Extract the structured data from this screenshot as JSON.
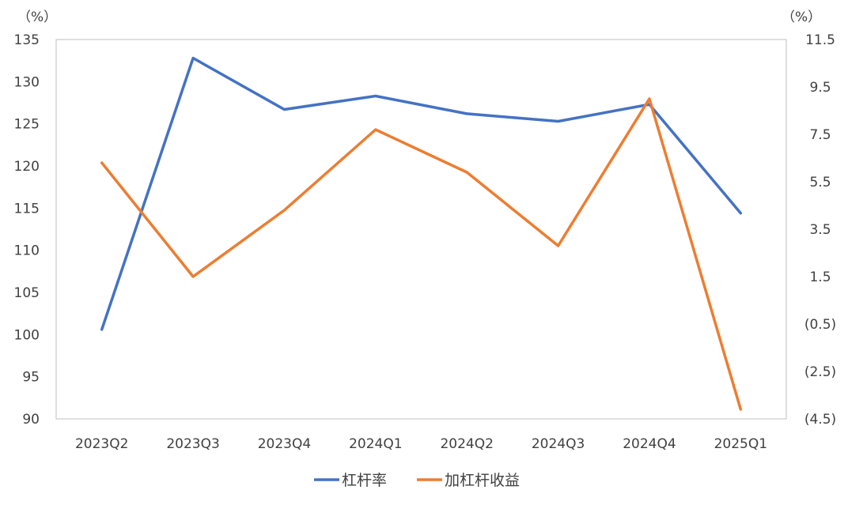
{
  "chart_data": {
    "type": "line",
    "categories": [
      "2023Q2",
      "2023Q3",
      "2023Q4",
      "2024Q1",
      "2024Q2",
      "2024Q3",
      "2024Q4",
      "2025Q1"
    ],
    "y_left": {
      "unit": "（%）",
      "ylim": [
        90,
        135
      ],
      "ticks": [
        "135",
        "130",
        "125",
        "120",
        "115",
        "110",
        "105",
        "100",
        "95",
        "90"
      ],
      "tick_values": [
        135,
        130,
        125,
        120,
        115,
        110,
        105,
        100,
        95,
        90
      ]
    },
    "y_right": {
      "unit": "（%）",
      "ylim": [
        -4.5,
        11.5
      ],
      "ticks": [
        "11.5",
        "9.5",
        "7.5",
        "5.5",
        "3.5",
        "1.5",
        "(0.5)",
        "(2.5)",
        "(4.5)"
      ],
      "tick_values": [
        11.5,
        9.5,
        7.5,
        5.5,
        3.5,
        1.5,
        -0.5,
        -2.5,
        -4.5
      ],
      "negative_color": "#ff0000"
    },
    "series": [
      {
        "name": "杠杆率",
        "axis": "left",
        "color": "#4472c4",
        "values": [
          100.6,
          132.8,
          126.7,
          128.3,
          126.2,
          125.3,
          127.3,
          114.4
        ]
      },
      {
        "name": "加杠杆收益",
        "axis": "right",
        "color": "#ed7d31",
        "values": [
          6.3,
          1.5,
          4.3,
          7.7,
          5.9,
          2.8,
          9.0,
          -4.1
        ]
      }
    ],
    "grid": false,
    "legend_position": "bottom"
  }
}
